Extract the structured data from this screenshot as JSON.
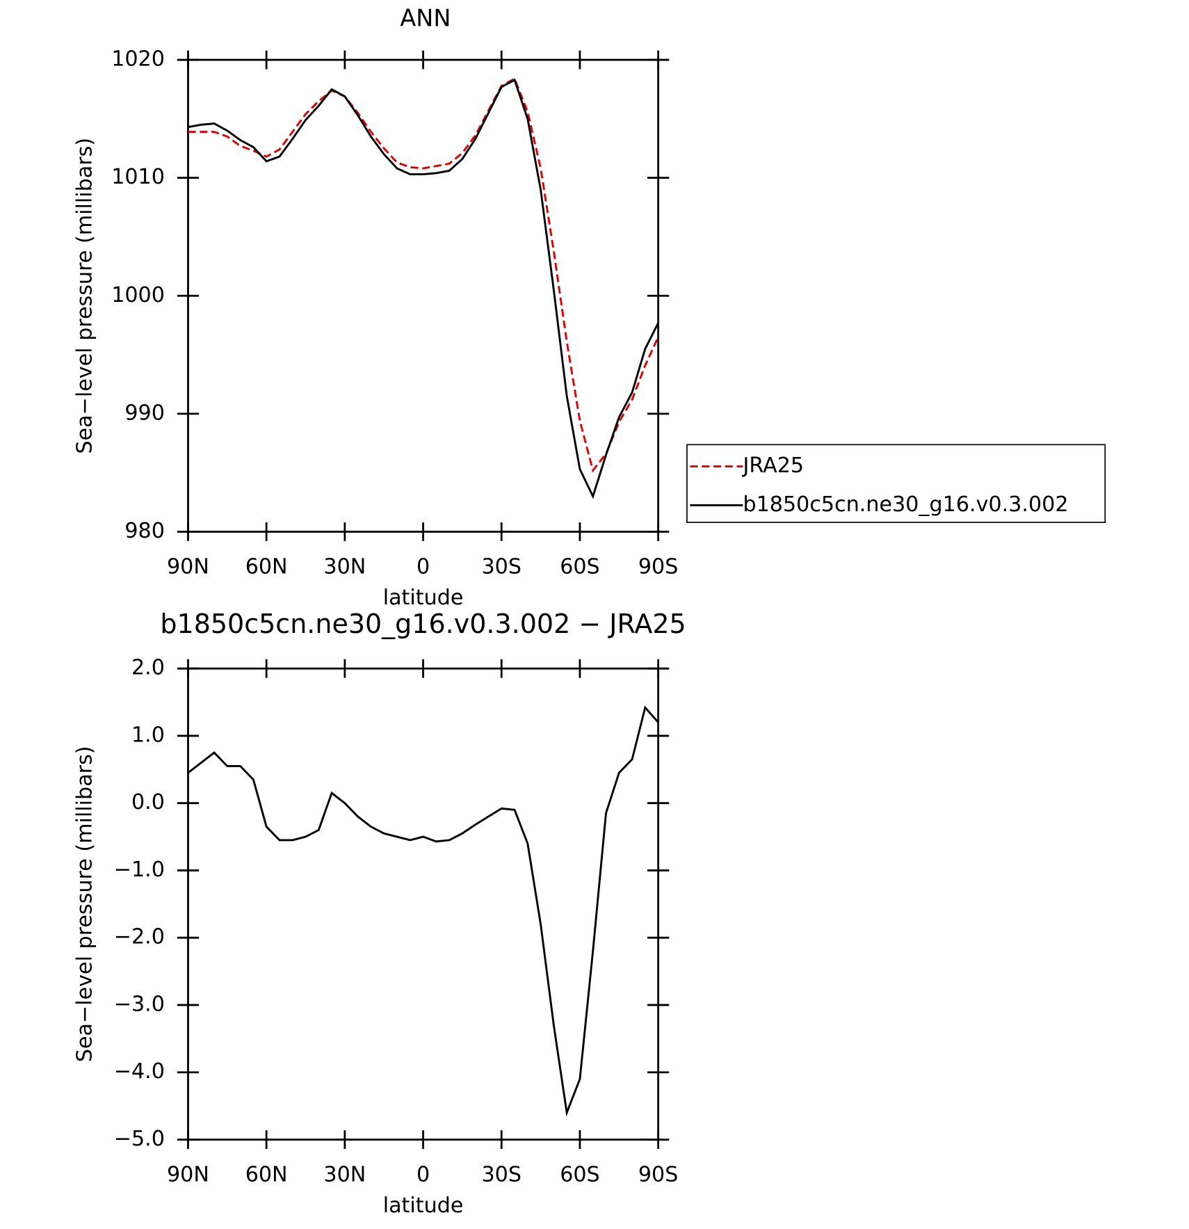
{
  "chart_data": [
    {
      "type": "line",
      "title": "ANN",
      "xlabel": "latitude",
      "ylabel": "Sea−level pressure (millibars)",
      "x": [
        90,
        85,
        80,
        75,
        70,
        65,
        60,
        55,
        50,
        45,
        40,
        35,
        30,
        25,
        20,
        15,
        10,
        5,
        0,
        -5,
        -10,
        -15,
        -20,
        -25,
        -30,
        -35,
        -40,
        -45,
        -50,
        -55,
        -60,
        -65,
        -70,
        -75,
        -80,
        -85,
        -90
      ],
      "series": [
        {
          "name": "JRA25",
          "color": "#e00000",
          "dash": true,
          "values": [
            1013.9,
            1013.9,
            1013.9,
            1013.5,
            1012.7,
            1012.3,
            1011.8,
            1012.4,
            1013.9,
            1015.4,
            1016.5,
            1017.4,
            1016.9,
            1015.5,
            1013.9,
            1012.5,
            1011.3,
            1010.9,
            1010.8,
            1011.0,
            1011.2,
            1012.1,
            1013.6,
            1015.7,
            1017.8,
            1018.4,
            1015.6,
            1010.8,
            1003.8,
            996.1,
            989.4,
            985.2,
            986.6,
            989.3,
            991.2,
            994.1,
            996.5
          ]
        },
        {
          "name": "b1850c5cn.ne30_g16.v0.3.002",
          "color": "#000000",
          "dash": false,
          "values": [
            1014.3,
            1014.5,
            1014.6,
            1014.0,
            1013.2,
            1012.6,
            1011.4,
            1011.8,
            1013.3,
            1014.9,
            1016.1,
            1017.5,
            1016.9,
            1015.3,
            1013.5,
            1012.0,
            1010.8,
            1010.3,
            1010.3,
            1010.4,
            1010.6,
            1011.6,
            1013.3,
            1015.5,
            1017.7,
            1018.3,
            1015.0,
            1009.0,
            1000.5,
            991.5,
            985.3,
            983.0,
            986.5,
            989.7,
            991.8,
            995.5,
            997.7
          ]
        }
      ],
      "xlim": [
        90,
        -90
      ],
      "xticks": [
        {
          "value": 90,
          "label": "90N"
        },
        {
          "value": 60,
          "label": "60N"
        },
        {
          "value": 30,
          "label": "30N"
        },
        0,
        {
          "value": -30,
          "label": "30S"
        },
        {
          "value": -60,
          "label": "60S"
        },
        {
          "value": -90,
          "label": "90S"
        }
      ],
      "ylim": [
        980,
        1020
      ],
      "yticks": [
        980,
        990,
        1000,
        1010,
        1020
      ],
      "legend": "right"
    },
    {
      "type": "line",
      "title": "b1850c5cn.ne30_g16.v0.3.002 − JRA25",
      "xlabel": "latitude",
      "ylabel": "Sea−level pressure (millibars)",
      "x": [
        90,
        85,
        80,
        75,
        70,
        65,
        60,
        55,
        50,
        45,
        40,
        35,
        30,
        25,
        20,
        15,
        10,
        5,
        0,
        -5,
        -10,
        -15,
        -20,
        -25,
        -30,
        -35,
        -40,
        -45,
        -50,
        -55,
        -60,
        -65,
        -70,
        -75,
        -80,
        -85,
        -90
      ],
      "series": [
        {
          "color": "#000000",
          "dash": false,
          "values": [
            0.45,
            0.6,
            0.75,
            0.55,
            0.55,
            0.35,
            -0.35,
            -0.55,
            -0.55,
            -0.5,
            -0.4,
            0.15,
            0.0,
            -0.2,
            -0.35,
            -0.45,
            -0.5,
            -0.55,
            -0.5,
            -0.57,
            -0.55,
            -0.45,
            -0.32,
            -0.2,
            -0.08,
            -0.1,
            -0.6,
            -1.8,
            -3.3,
            -4.6,
            -4.1,
            -2.2,
            -0.15,
            0.45,
            0.65,
            1.42,
            1.2
          ]
        }
      ],
      "xlim": [
        90,
        -90
      ],
      "xticks": [
        {
          "value": 90,
          "label": "90N"
        },
        {
          "value": 60,
          "label": "60N"
        },
        {
          "value": 30,
          "label": "30N"
        },
        0,
        {
          "value": -30,
          "label": "30S"
        },
        {
          "value": -60,
          "label": "60S"
        },
        {
          "value": -90,
          "label": "90S"
        }
      ],
      "ylim": [
        -5.0,
        2.0
      ],
      "yticks": [
        {
          "value": -5,
          "label": "−5.0"
        },
        {
          "value": -4,
          "label": "−4.0"
        },
        {
          "value": -3,
          "label": "−3.0"
        },
        {
          "value": -2,
          "label": "−2.0"
        },
        {
          "value": -1,
          "label": "−1.0"
        },
        {
          "value": 0,
          "label": "0.0"
        },
        {
          "value": 1,
          "label": "1.0"
        },
        {
          "value": 2,
          "label": "2.0"
        }
      ]
    }
  ]
}
